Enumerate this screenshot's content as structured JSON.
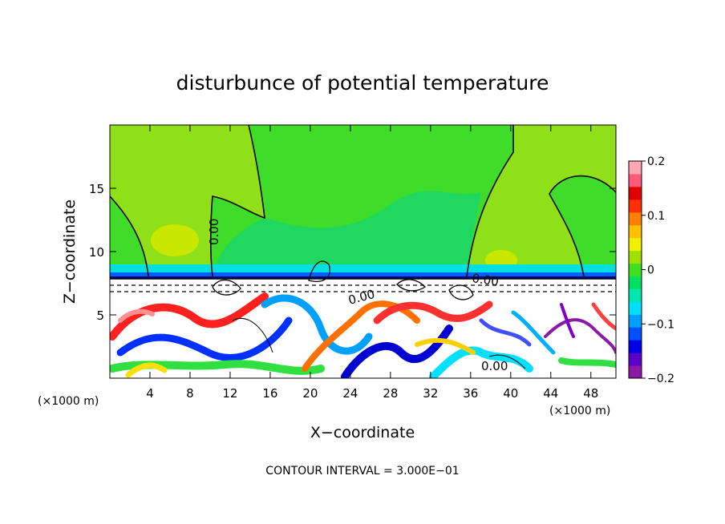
{
  "chart_data": {
    "type": "heatmap",
    "title": "disturbunce of potential temperature",
    "xlabel": "X−coordinate",
    "ylabel": "Z−coordinate",
    "x_unit": "(×1000 m)",
    "x_unit_right": "(×1000 m)",
    "xlim": [
      0,
      50.5
    ],
    "ylim": [
      0,
      20
    ],
    "x_ticks": [
      4,
      8,
      12,
      16,
      20,
      24,
      28,
      32,
      36,
      40,
      44,
      48
    ],
    "y_ticks": [
      5,
      10,
      15
    ],
    "colorbar": {
      "range": [
        -0.2,
        0.2
      ],
      "tick_values": [
        0.2,
        0.1,
        0,
        -0.1,
        -0.2
      ],
      "tick_labels": [
        "0.2",
        "0.1",
        "0",
        "−0.1",
        "−0.2"
      ],
      "colors": [
        "#8c1aa6",
        "#5a00c8",
        "#0000e6",
        "#0050ff",
        "#00a0ff",
        "#00e0ff",
        "#00e8b0",
        "#00e060",
        "#40e020",
        "#a0e000",
        "#f0f000",
        "#ffc000",
        "#ff8000",
        "#ff3000",
        "#e00000",
        "#ff5a78",
        "#ffa8b4"
      ]
    },
    "contour_labels": [
      "0.00",
      "0.00",
      "0.00",
      "0.00"
    ],
    "contour_interval_text": "CONTOUR INTERVAL =  3.000E−01"
  }
}
